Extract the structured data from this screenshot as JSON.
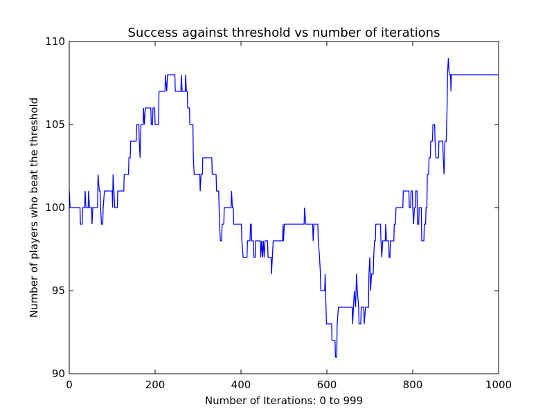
{
  "chart_data": {
    "type": "line",
    "title": "Success against threshold vs number of iterations",
    "xlabel": "Number of Iterations: 0 to 999",
    "ylabel": "Number of players who beat the threshold",
    "xlim": [
      0,
      1000
    ],
    "ylim": [
      90,
      110
    ],
    "xticks": [
      0,
      200,
      400,
      600,
      800,
      1000
    ],
    "yticks": [
      90,
      95,
      100,
      105,
      110
    ],
    "grid": false,
    "legend": "none",
    "series": [
      {
        "color": "#0000ff",
        "points": [
          [
            0,
            101
          ],
          [
            2,
            100
          ],
          [
            25,
            100
          ],
          [
            26,
            99
          ],
          [
            30,
            99
          ],
          [
            31,
            100
          ],
          [
            36,
            100
          ],
          [
            37,
            101
          ],
          [
            39,
            100
          ],
          [
            44,
            100
          ],
          [
            45,
            101
          ],
          [
            47,
            100
          ],
          [
            52,
            100
          ],
          [
            53,
            99
          ],
          [
            55,
            100
          ],
          [
            66,
            100
          ],
          [
            67,
            102
          ],
          [
            70,
            101
          ],
          [
            72,
            101
          ],
          [
            73,
            100
          ],
          [
            75,
            99
          ],
          [
            78,
            99
          ],
          [
            79,
            100
          ],
          [
            82,
            101
          ],
          [
            100,
            101
          ],
          [
            101,
            100
          ],
          [
            102,
            102
          ],
          [
            104,
            101
          ],
          [
            106,
            100
          ],
          [
            112,
            100
          ],
          [
            113,
            101
          ],
          [
            127,
            101
          ],
          [
            128,
            102
          ],
          [
            138,
            102
          ],
          [
            139,
            103
          ],
          [
            142,
            103
          ],
          [
            143,
            104
          ],
          [
            156,
            104
          ],
          [
            157,
            105
          ],
          [
            162,
            105
          ],
          [
            163,
            104
          ],
          [
            165,
            103
          ],
          [
            167,
            105
          ],
          [
            172,
            105
          ],
          [
            173,
            106
          ],
          [
            175,
            105
          ],
          [
            177,
            106
          ],
          [
            190,
            106
          ],
          [
            191,
            105
          ],
          [
            194,
            105
          ],
          [
            195,
            106
          ],
          [
            199,
            106
          ],
          [
            200,
            105
          ],
          [
            208,
            105
          ],
          [
            209,
            107
          ],
          [
            223,
            107
          ],
          [
            224,
            108
          ],
          [
            227,
            107
          ],
          [
            229,
            108
          ],
          [
            246,
            108
          ],
          [
            247,
            107
          ],
          [
            260,
            107
          ],
          [
            261,
            108
          ],
          [
            263,
            107
          ],
          [
            270,
            107
          ],
          [
            271,
            108
          ],
          [
            273,
            107
          ],
          [
            275,
            107
          ],
          [
            276,
            106
          ],
          [
            280,
            106
          ],
          [
            281,
            105
          ],
          [
            288,
            105
          ],
          [
            289,
            103
          ],
          [
            291,
            102
          ],
          [
            304,
            102
          ],
          [
            305,
            101
          ],
          [
            307,
            102
          ],
          [
            310,
            102
          ],
          [
            311,
            103
          ],
          [
            332,
            103
          ],
          [
            333,
            102
          ],
          [
            342,
            102
          ],
          [
            343,
            101
          ],
          [
            348,
            101
          ],
          [
            349,
            100
          ],
          [
            350,
            99
          ],
          [
            352,
            98
          ],
          [
            355,
            98
          ],
          [
            356,
            99
          ],
          [
            360,
            99
          ],
          [
            361,
            100
          ],
          [
            377,
            100
          ],
          [
            378,
            101
          ],
          [
            380,
            100
          ],
          [
            382,
            100
          ],
          [
            383,
            99
          ],
          [
            401,
            99
          ],
          [
            402,
            98
          ],
          [
            405,
            97
          ],
          [
            414,
            97
          ],
          [
            415,
            98
          ],
          [
            421,
            98
          ],
          [
            422,
            99
          ],
          [
            424,
            99
          ],
          [
            425,
            98
          ],
          [
            429,
            98
          ],
          [
            430,
            97
          ],
          [
            433,
            97
          ],
          [
            434,
            98
          ],
          [
            445,
            98
          ],
          [
            446,
            97
          ],
          [
            448,
            98
          ],
          [
            450,
            97
          ],
          [
            452,
            98
          ],
          [
            454,
            97
          ],
          [
            456,
            98
          ],
          [
            462,
            98
          ],
          [
            463,
            97
          ],
          [
            470,
            97
          ],
          [
            471,
            96
          ],
          [
            473,
            97
          ],
          [
            475,
            98
          ],
          [
            497,
            98
          ],
          [
            498,
            99
          ],
          [
            499,
            98
          ],
          [
            501,
            99
          ],
          [
            547,
            99
          ],
          [
            548,
            100
          ],
          [
            551,
            99
          ],
          [
            567,
            99
          ],
          [
            568,
            98
          ],
          [
            570,
            99
          ],
          [
            579,
            99
          ],
          [
            580,
            98
          ],
          [
            583,
            97
          ],
          [
            585,
            96
          ],
          [
            586,
            95
          ],
          [
            595,
            95
          ],
          [
            596,
            96
          ],
          [
            598,
            94
          ],
          [
            599,
            93
          ],
          [
            611,
            93
          ],
          [
            612,
            92
          ],
          [
            619,
            92
          ],
          [
            620,
            91
          ],
          [
            623,
            91
          ],
          [
            624,
            93
          ],
          [
            627,
            94
          ],
          [
            659,
            94
          ],
          [
            660,
            93
          ],
          [
            662,
            94
          ],
          [
            664,
            95
          ],
          [
            667,
            94
          ],
          [
            669,
            96
          ],
          [
            671,
            95
          ],
          [
            674,
            94
          ],
          [
            675,
            93
          ],
          [
            679,
            93
          ],
          [
            680,
            94
          ],
          [
            686,
            94
          ],
          [
            687,
            93
          ],
          [
            690,
            94
          ],
          [
            697,
            94
          ],
          [
            698,
            96
          ],
          [
            700,
            97
          ],
          [
            702,
            95
          ],
          [
            704,
            96
          ],
          [
            708,
            96
          ],
          [
            709,
            97
          ],
          [
            711,
            98
          ],
          [
            713,
            98
          ],
          [
            714,
            99
          ],
          [
            725,
            99
          ],
          [
            726,
            98
          ],
          [
            728,
            97
          ],
          [
            730,
            98
          ],
          [
            736,
            98
          ],
          [
            737,
            99
          ],
          [
            739,
            98
          ],
          [
            744,
            98
          ],
          [
            745,
            97
          ],
          [
            747,
            97
          ],
          [
            748,
            98
          ],
          [
            756,
            98
          ],
          [
            757,
            99
          ],
          [
            760,
            99
          ],
          [
            761,
            100
          ],
          [
            777,
            100
          ],
          [
            778,
            101
          ],
          [
            791,
            101
          ],
          [
            792,
            100
          ],
          [
            795,
            100
          ],
          [
            796,
            101
          ],
          [
            799,
            101
          ],
          [
            800,
            100
          ],
          [
            802,
            99
          ],
          [
            804,
            100
          ],
          [
            806,
            100
          ],
          [
            807,
            101
          ],
          [
            810,
            101
          ],
          [
            811,
            99
          ],
          [
            814,
            99
          ],
          [
            815,
            100
          ],
          [
            820,
            100
          ],
          [
            821,
            98
          ],
          [
            826,
            98
          ],
          [
            827,
            99
          ],
          [
            830,
            99
          ],
          [
            831,
            100
          ],
          [
            833,
            100
          ],
          [
            834,
            102
          ],
          [
            837,
            102
          ],
          [
            838,
            103
          ],
          [
            841,
            103
          ],
          [
            842,
            104
          ],
          [
            846,
            104
          ],
          [
            847,
            105
          ],
          [
            851,
            105
          ],
          [
            852,
            104
          ],
          [
            854,
            103
          ],
          [
            860,
            103
          ],
          [
            861,
            104
          ],
          [
            870,
            104
          ],
          [
            871,
            103
          ],
          [
            873,
            102
          ],
          [
            875,
            104
          ],
          [
            878,
            104
          ],
          [
            879,
            105
          ],
          [
            880,
            106
          ],
          [
            881,
            108
          ],
          [
            883,
            109
          ],
          [
            885,
            108
          ],
          [
            888,
            108
          ],
          [
            889,
            107
          ],
          [
            890,
            108
          ],
          [
            999,
            108
          ]
        ]
      }
    ]
  }
}
